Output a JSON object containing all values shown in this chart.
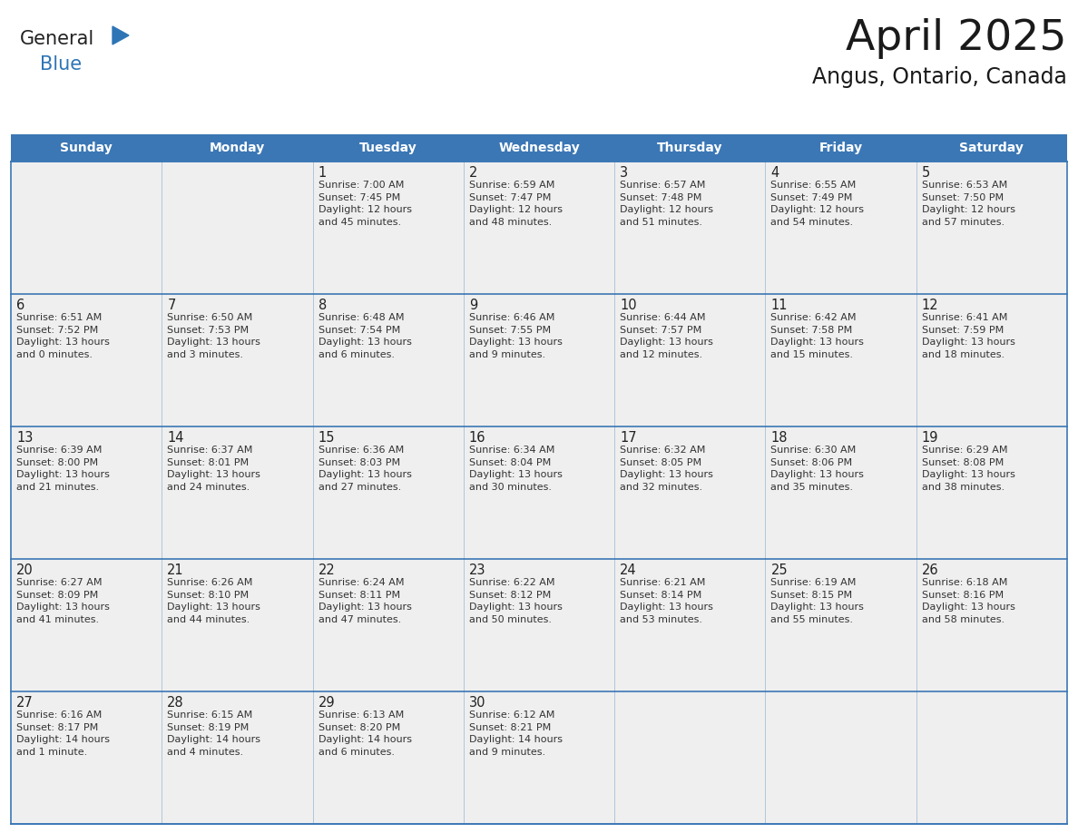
{
  "title": "April 2025",
  "subtitle": "Angus, Ontario, Canada",
  "header_color": "#3B77B5",
  "header_text_color": "#FFFFFF",
  "header_days": [
    "Sunday",
    "Monday",
    "Tuesday",
    "Wednesday",
    "Thursday",
    "Friday",
    "Saturday"
  ],
  "grid_line_color": "#3B77B5",
  "background_color": "#FFFFFF",
  "cell_bg_color": "#EFEFEF",
  "cell_bg_empty": "#EFEFEF",
  "title_color": "#1a1a1a",
  "subtitle_color": "#1a1a1a",
  "day_number_color": "#222222",
  "text_color": "#333333",
  "weeks": [
    [
      {
        "day": "",
        "text": ""
      },
      {
        "day": "",
        "text": ""
      },
      {
        "day": "1",
        "text": "Sunrise: 7:00 AM\nSunset: 7:45 PM\nDaylight: 12 hours\nand 45 minutes."
      },
      {
        "day": "2",
        "text": "Sunrise: 6:59 AM\nSunset: 7:47 PM\nDaylight: 12 hours\nand 48 minutes."
      },
      {
        "day": "3",
        "text": "Sunrise: 6:57 AM\nSunset: 7:48 PM\nDaylight: 12 hours\nand 51 minutes."
      },
      {
        "day": "4",
        "text": "Sunrise: 6:55 AM\nSunset: 7:49 PM\nDaylight: 12 hours\nand 54 minutes."
      },
      {
        "day": "5",
        "text": "Sunrise: 6:53 AM\nSunset: 7:50 PM\nDaylight: 12 hours\nand 57 minutes."
      }
    ],
    [
      {
        "day": "6",
        "text": "Sunrise: 6:51 AM\nSunset: 7:52 PM\nDaylight: 13 hours\nand 0 minutes."
      },
      {
        "day": "7",
        "text": "Sunrise: 6:50 AM\nSunset: 7:53 PM\nDaylight: 13 hours\nand 3 minutes."
      },
      {
        "day": "8",
        "text": "Sunrise: 6:48 AM\nSunset: 7:54 PM\nDaylight: 13 hours\nand 6 minutes."
      },
      {
        "day": "9",
        "text": "Sunrise: 6:46 AM\nSunset: 7:55 PM\nDaylight: 13 hours\nand 9 minutes."
      },
      {
        "day": "10",
        "text": "Sunrise: 6:44 AM\nSunset: 7:57 PM\nDaylight: 13 hours\nand 12 minutes."
      },
      {
        "day": "11",
        "text": "Sunrise: 6:42 AM\nSunset: 7:58 PM\nDaylight: 13 hours\nand 15 minutes."
      },
      {
        "day": "12",
        "text": "Sunrise: 6:41 AM\nSunset: 7:59 PM\nDaylight: 13 hours\nand 18 minutes."
      }
    ],
    [
      {
        "day": "13",
        "text": "Sunrise: 6:39 AM\nSunset: 8:00 PM\nDaylight: 13 hours\nand 21 minutes."
      },
      {
        "day": "14",
        "text": "Sunrise: 6:37 AM\nSunset: 8:01 PM\nDaylight: 13 hours\nand 24 minutes."
      },
      {
        "day": "15",
        "text": "Sunrise: 6:36 AM\nSunset: 8:03 PM\nDaylight: 13 hours\nand 27 minutes."
      },
      {
        "day": "16",
        "text": "Sunrise: 6:34 AM\nSunset: 8:04 PM\nDaylight: 13 hours\nand 30 minutes."
      },
      {
        "day": "17",
        "text": "Sunrise: 6:32 AM\nSunset: 8:05 PM\nDaylight: 13 hours\nand 32 minutes."
      },
      {
        "day": "18",
        "text": "Sunrise: 6:30 AM\nSunset: 8:06 PM\nDaylight: 13 hours\nand 35 minutes."
      },
      {
        "day": "19",
        "text": "Sunrise: 6:29 AM\nSunset: 8:08 PM\nDaylight: 13 hours\nand 38 minutes."
      }
    ],
    [
      {
        "day": "20",
        "text": "Sunrise: 6:27 AM\nSunset: 8:09 PM\nDaylight: 13 hours\nand 41 minutes."
      },
      {
        "day": "21",
        "text": "Sunrise: 6:26 AM\nSunset: 8:10 PM\nDaylight: 13 hours\nand 44 minutes."
      },
      {
        "day": "22",
        "text": "Sunrise: 6:24 AM\nSunset: 8:11 PM\nDaylight: 13 hours\nand 47 minutes."
      },
      {
        "day": "23",
        "text": "Sunrise: 6:22 AM\nSunset: 8:12 PM\nDaylight: 13 hours\nand 50 minutes."
      },
      {
        "day": "24",
        "text": "Sunrise: 6:21 AM\nSunset: 8:14 PM\nDaylight: 13 hours\nand 53 minutes."
      },
      {
        "day": "25",
        "text": "Sunrise: 6:19 AM\nSunset: 8:15 PM\nDaylight: 13 hours\nand 55 minutes."
      },
      {
        "day": "26",
        "text": "Sunrise: 6:18 AM\nSunset: 8:16 PM\nDaylight: 13 hours\nand 58 minutes."
      }
    ],
    [
      {
        "day": "27",
        "text": "Sunrise: 6:16 AM\nSunset: 8:17 PM\nDaylight: 14 hours\nand 1 minute."
      },
      {
        "day": "28",
        "text": "Sunrise: 6:15 AM\nSunset: 8:19 PM\nDaylight: 14 hours\nand 4 minutes."
      },
      {
        "day": "29",
        "text": "Sunrise: 6:13 AM\nSunset: 8:20 PM\nDaylight: 14 hours\nand 6 minutes."
      },
      {
        "day": "30",
        "text": "Sunrise: 6:12 AM\nSunset: 8:21 PM\nDaylight: 14 hours\nand 9 minutes."
      },
      {
        "day": "",
        "text": ""
      },
      {
        "day": "",
        "text": ""
      },
      {
        "day": "",
        "text": ""
      }
    ]
  ],
  "logo_general_color": "#222222",
  "logo_blue_color": "#2E75B6",
  "logo_triangle_color": "#2E75B6",
  "fig_width": 11.88,
  "fig_height": 9.18,
  "dpi": 100
}
